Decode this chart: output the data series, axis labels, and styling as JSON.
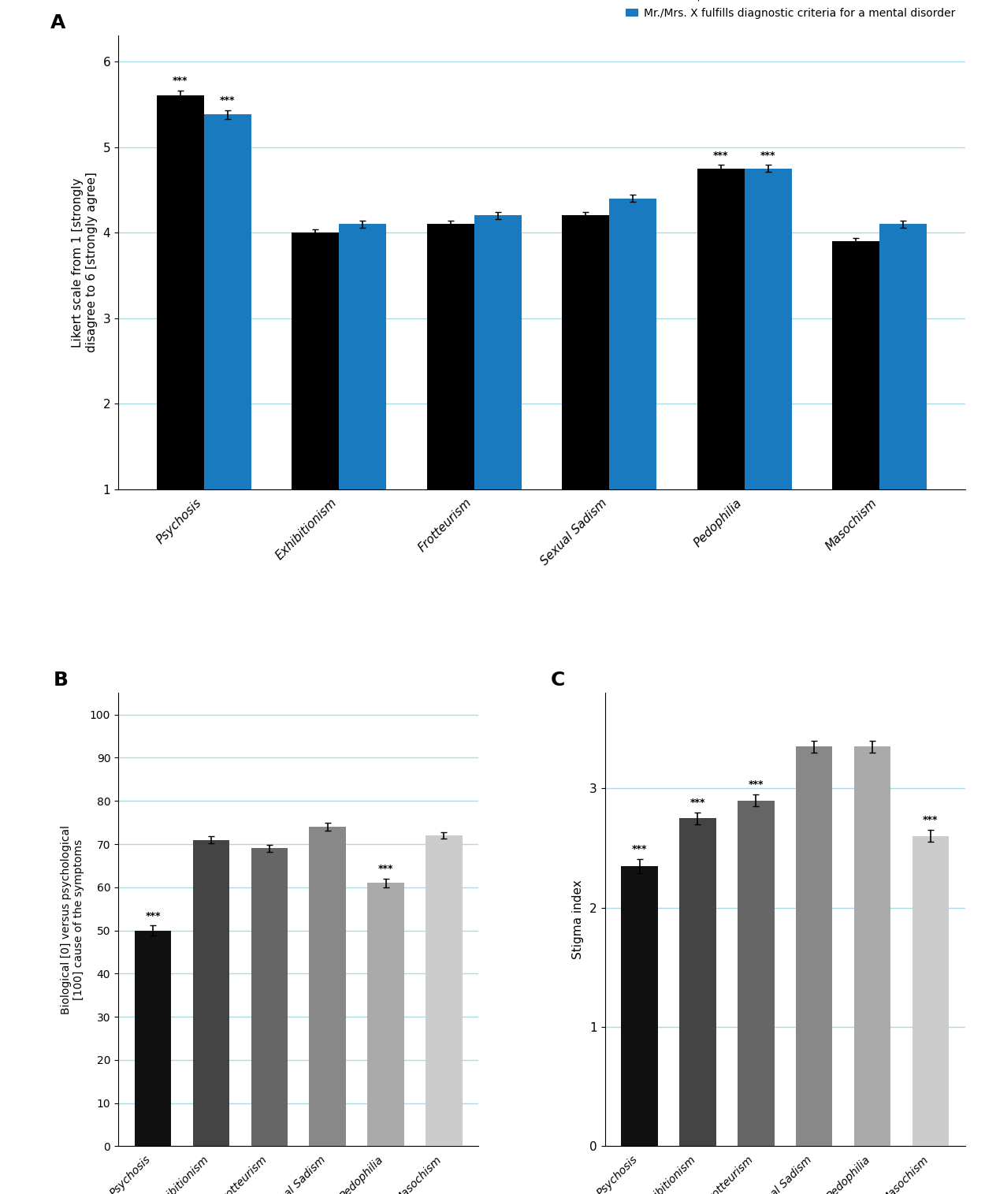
{
  "categories": [
    "Psychosis",
    "Exhibitionism",
    "Frotteurism",
    "Sexual Sadism",
    "Pedophilia",
    "Masochism"
  ],
  "panel_A": {
    "black_values": [
      5.6,
      4.0,
      4.1,
      4.2,
      4.75,
      3.9
    ],
    "blue_values": [
      5.38,
      4.1,
      4.2,
      4.4,
      4.75,
      4.1
    ],
    "black_errors": [
      0.06,
      0.04,
      0.04,
      0.04,
      0.04,
      0.04
    ],
    "blue_errors": [
      0.05,
      0.04,
      0.04,
      0.04,
      0.04,
      0.04
    ],
    "black_sig": [
      "***",
      "",
      "",
      "",
      "***",
      ""
    ],
    "blue_sig": [
      "***",
      "",
      "",
      "",
      "***",
      ""
    ],
    "ylabel": "Likert scale from 1 [strongly\ndisagree to 6 [strongly agree]",
    "ylim": [
      1,
      6.3
    ],
    "yticks": [
      1,
      2,
      3,
      4,
      5,
      6
    ],
    "panel_label": "A"
  },
  "panel_B": {
    "values": [
      50.0,
      71.0,
      69.0,
      74.0,
      61.0,
      72.0
    ],
    "errors": [
      1.2,
      0.9,
      0.8,
      0.9,
      1.0,
      0.8
    ],
    "sig": [
      "***",
      "",
      "",
      "",
      "***",
      ""
    ],
    "colors": [
      "#111111",
      "#444444",
      "#666666",
      "#888888",
      "#aaaaaa",
      "#cccccc"
    ],
    "ylabel": "Biological [0] versus psychological\n[100] cause of the symptoms",
    "ylim": [
      0,
      105
    ],
    "yticks": [
      0,
      10,
      20,
      30,
      40,
      50,
      60,
      70,
      80,
      90,
      100
    ],
    "panel_label": "B"
  },
  "panel_C": {
    "values": [
      2.35,
      2.75,
      2.9,
      3.35,
      3.35,
      2.6
    ],
    "errors": [
      0.06,
      0.05,
      0.05,
      0.05,
      0.05,
      0.05
    ],
    "sig": [
      "***",
      "***",
      "***",
      "",
      "",
      "***"
    ],
    "colors": [
      "#111111",
      "#444444",
      "#666666",
      "#888888",
      "#aaaaaa",
      "#cccccc"
    ],
    "ylabel": "Stigma index",
    "ylim": [
      0,
      3.8
    ],
    "yticks": [
      0,
      1,
      2,
      3
    ],
    "panel_label": "C"
  },
  "legend_black": "I think Mr./Mrs. X has a mental disorder",
  "legend_blue": "Mr./Mrs. X fulfills diagnostic criteria for a mental disorder",
  "black_color": "#000000",
  "blue_color": "#1a7abf",
  "grid_color": "#add8e6",
  "sig_color_black": "#000000",
  "sig_color_blue": "#000000",
  "bar_width": 0.35,
  "figure_bg": "#ffffff"
}
